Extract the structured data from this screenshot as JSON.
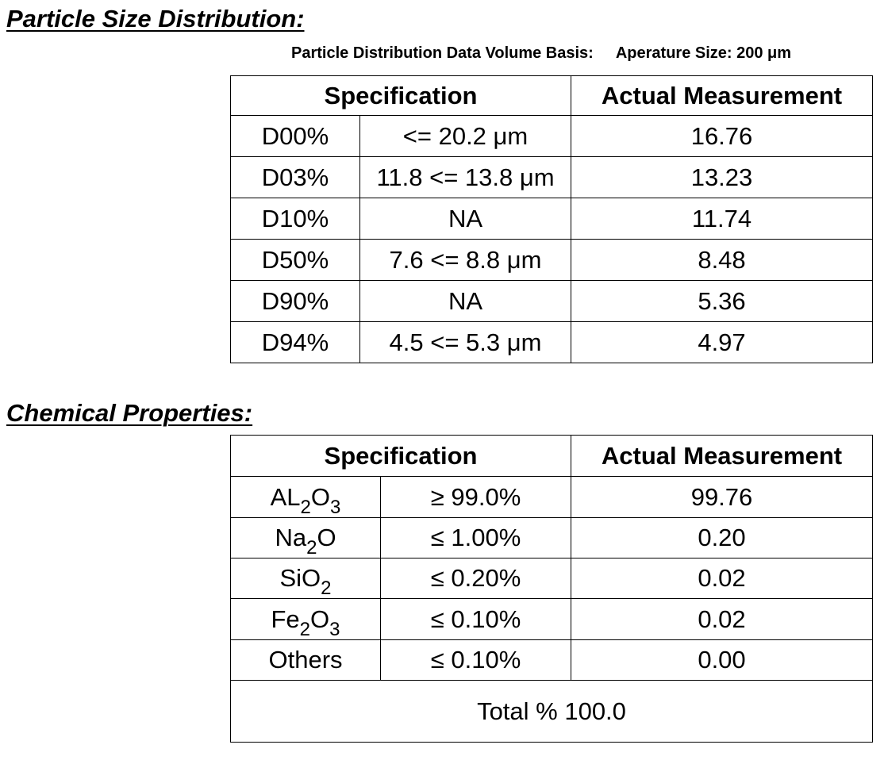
{
  "particle_section": {
    "title": "Particle Size Distribution:",
    "basis_label": "Particle Distribution Data Volume Basis:",
    "aperture_label": "Aperature Size: 200 μm",
    "headers": {
      "specification": "Specification",
      "actual": "Actual Measurement"
    },
    "rows": [
      {
        "param": "D00%",
        "spec": "<= 20.2 μm",
        "actual": "16.76"
      },
      {
        "param": "D03%",
        "spec": "11.8 <= 13.8 μm",
        "actual": "13.23"
      },
      {
        "param": "D10%",
        "spec": "NA",
        "actual": "11.74"
      },
      {
        "param": "D50%",
        "spec": "7.6 <= 8.8 μm",
        "actual": "8.48"
      },
      {
        "param": "D90%",
        "spec": "NA",
        "actual": "5.36"
      },
      {
        "param": "D94%",
        "spec": "4.5 <= 5.3 μm",
        "actual": "4.97"
      }
    ]
  },
  "chemical_section": {
    "title": "Chemical Properties:",
    "headers": {
      "specification": "Specification",
      "actual": "Actual Measurement"
    },
    "rows": [
      {
        "compound_base": "AL",
        "compound_sub1": "2",
        "compound_mid": "O",
        "compound_sub2": "3",
        "spec": "≥ 99.0%",
        "actual": "99.76"
      },
      {
        "compound_base": "Na",
        "compound_sub1": "2",
        "compound_mid": "O",
        "compound_sub2": "",
        "spec": "≤ 1.00%",
        "actual": "0.20"
      },
      {
        "compound_base": "SiO",
        "compound_sub1": "2",
        "compound_mid": "",
        "compound_sub2": "",
        "spec": "≤ 0.20%",
        "actual": "0.02"
      },
      {
        "compound_base": "Fe",
        "compound_sub1": "2",
        "compound_mid": "O",
        "compound_sub2": "3",
        "spec": "≤ 0.10%",
        "actual": "0.02"
      },
      {
        "compound_base": "Others",
        "compound_sub1": "",
        "compound_mid": "",
        "compound_sub2": "",
        "spec": "≤ 0.10%",
        "actual": "0.00"
      }
    ],
    "total": "Total % 100.0"
  }
}
